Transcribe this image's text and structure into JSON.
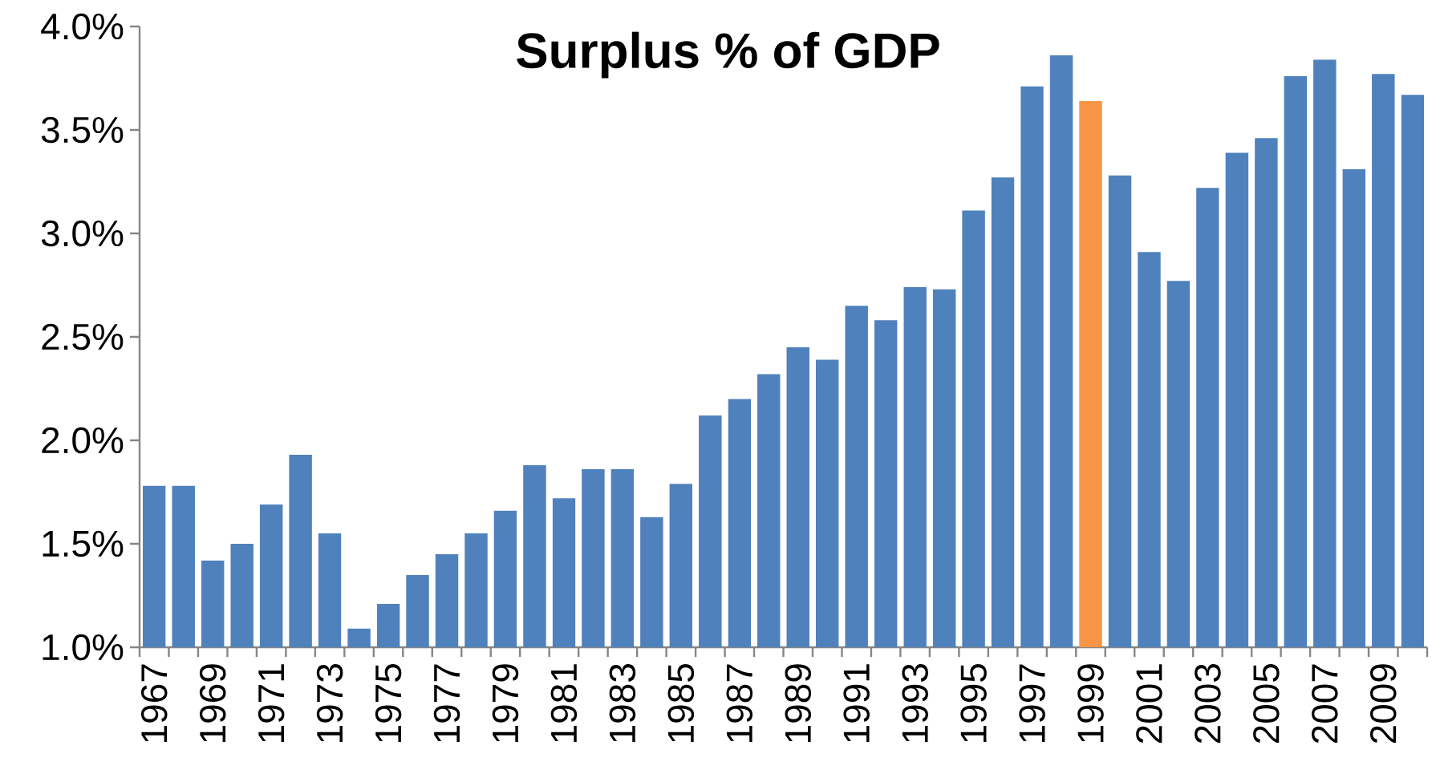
{
  "chart_data": {
    "type": "bar",
    "title": "Surplus % of GDP",
    "categories": [
      "1967",
      null,
      "1969",
      null,
      "1971",
      null,
      "1973",
      null,
      "1975",
      null,
      "1977",
      null,
      "1979",
      null,
      "1981",
      null,
      "1983",
      null,
      "1985",
      null,
      "1987",
      null,
      "1989",
      null,
      "1991",
      null,
      "1993",
      null,
      "1995",
      null,
      "1997",
      null,
      "1999",
      null,
      "2001",
      null,
      "2003",
      null,
      "2005",
      null,
      "2007",
      null,
      "2009",
      null
    ],
    "values": [
      1.78,
      1.78,
      1.42,
      1.5,
      1.69,
      1.93,
      1.55,
      1.09,
      1.21,
      1.35,
      1.45,
      1.55,
      1.66,
      1.88,
      1.72,
      1.86,
      1.86,
      1.63,
      1.79,
      2.12,
      2.2,
      2.32,
      2.45,
      2.39,
      2.65,
      2.58,
      2.74,
      2.73,
      3.11,
      3.27,
      3.71,
      3.86,
      3.64,
      3.28,
      2.91,
      2.77,
      3.22,
      3.39,
      3.46,
      3.76,
      3.84,
      3.31,
      3.77,
      3.67
    ],
    "colors": [
      "#4f81bd",
      "#4f81bd",
      "#4f81bd",
      "#4f81bd",
      "#4f81bd",
      "#4f81bd",
      "#4f81bd",
      "#4f81bd",
      "#4f81bd",
      "#4f81bd",
      "#4f81bd",
      "#4f81bd",
      "#4f81bd",
      "#4f81bd",
      "#4f81bd",
      "#4f81bd",
      "#4f81bd",
      "#4f81bd",
      "#4f81bd",
      "#4f81bd",
      "#4f81bd",
      "#4f81bd",
      "#4f81bd",
      "#4f81bd",
      "#4f81bd",
      "#4f81bd",
      "#4f81bd",
      "#4f81bd",
      "#4f81bd",
      "#4f81bd",
      "#4f81bd",
      "#4f81bd",
      "#f79646",
      "#4f81bd",
      "#4f81bd",
      "#4f81bd",
      "#4f81bd",
      "#4f81bd",
      "#4f81bd",
      "#4f81bd",
      "#4f81bd",
      "#4f81bd",
      "#4f81bd",
      "#4f81bd"
    ],
    "yticks": [
      {
        "value": 1.0,
        "label": "1.0%"
      },
      {
        "value": 1.5,
        "label": "1.5%"
      },
      {
        "value": 2.0,
        "label": "2.0%"
      },
      {
        "value": 2.5,
        "label": "2.5%"
      },
      {
        "value": 3.0,
        "label": "3.0%"
      },
      {
        "value": 3.5,
        "label": "3.5%"
      },
      {
        "value": 4.0,
        "label": "4.0%"
      }
    ],
    "ylim": [
      1.0,
      4.0
    ]
  }
}
